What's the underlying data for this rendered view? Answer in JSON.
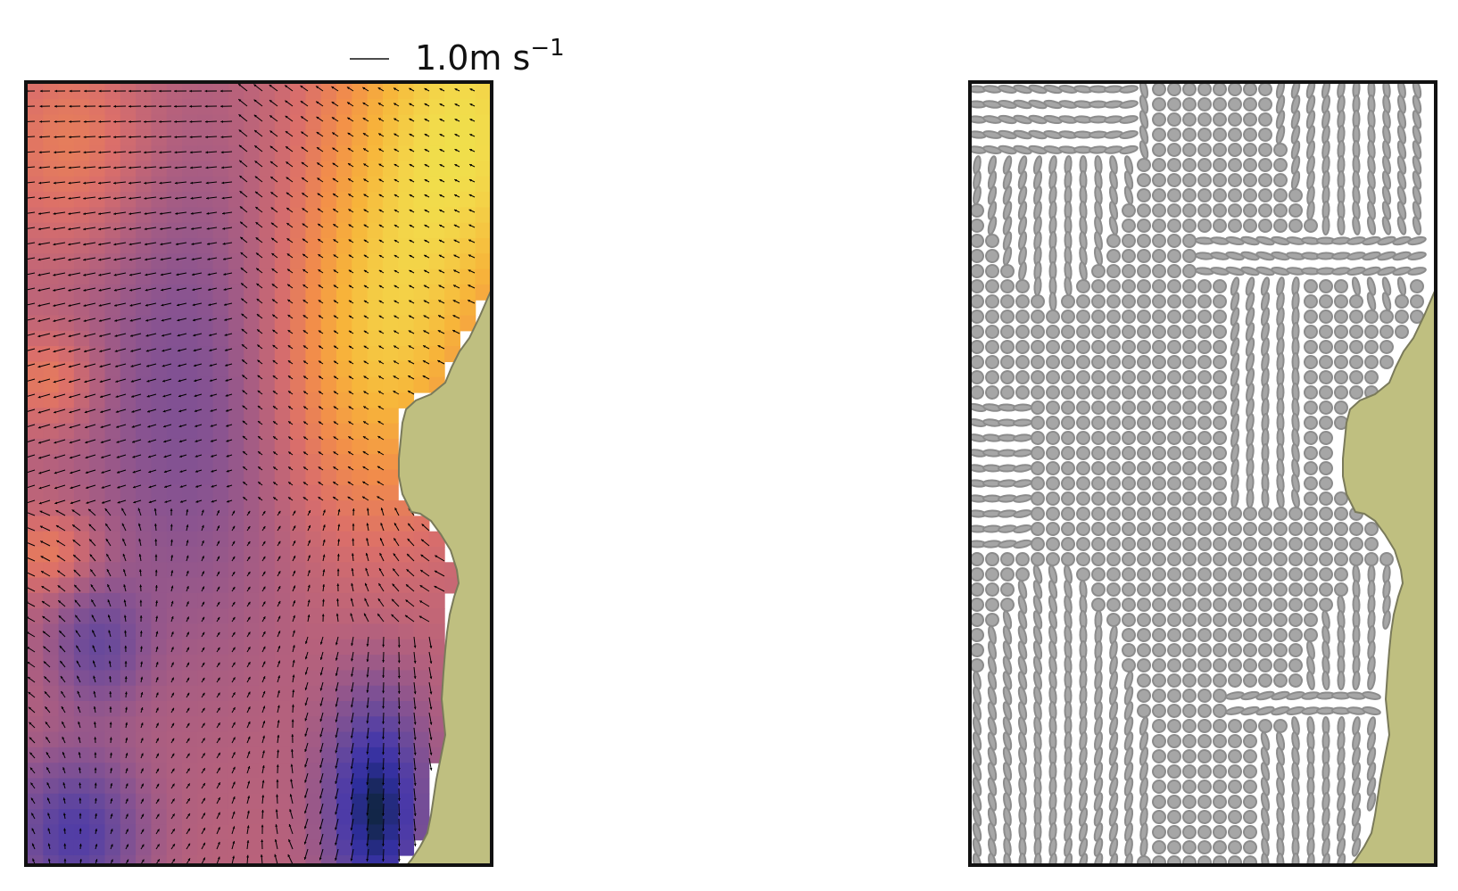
{
  "figure": {
    "scale_label_value": "1.0m s",
    "scale_label_exponent": "−1"
  },
  "colors": {
    "land": "#bfbf80",
    "land_edge": "#7a7a5a",
    "frame": "#111111",
    "arrows": "#000000",
    "ellipse_fill": "#a6a6a6",
    "ellipse_stroke": "#8c8c8c",
    "colormap": [
      "#0a2430",
      "#2f2e9e",
      "#4b3aa8",
      "#6a4a9a",
      "#8a5490",
      "#b2607e",
      "#db6f6a",
      "#f28d4a",
      "#f7b43a",
      "#f3d84a",
      "#e6f24f"
    ]
  },
  "chart_data": [
    {
      "type": "heatmap",
      "title": "",
      "xlabel": "",
      "ylabel": "",
      "overlay": "quiver",
      "quiver_reference": {
        "value": 1.0,
        "unit": "m s⁻¹"
      },
      "grid": false,
      "legend": "none"
    },
    {
      "type": "scatter",
      "marker": "ellipse",
      "title": "",
      "xlabel": "",
      "ylabel": "",
      "grid": false,
      "legend": "none"
    }
  ]
}
